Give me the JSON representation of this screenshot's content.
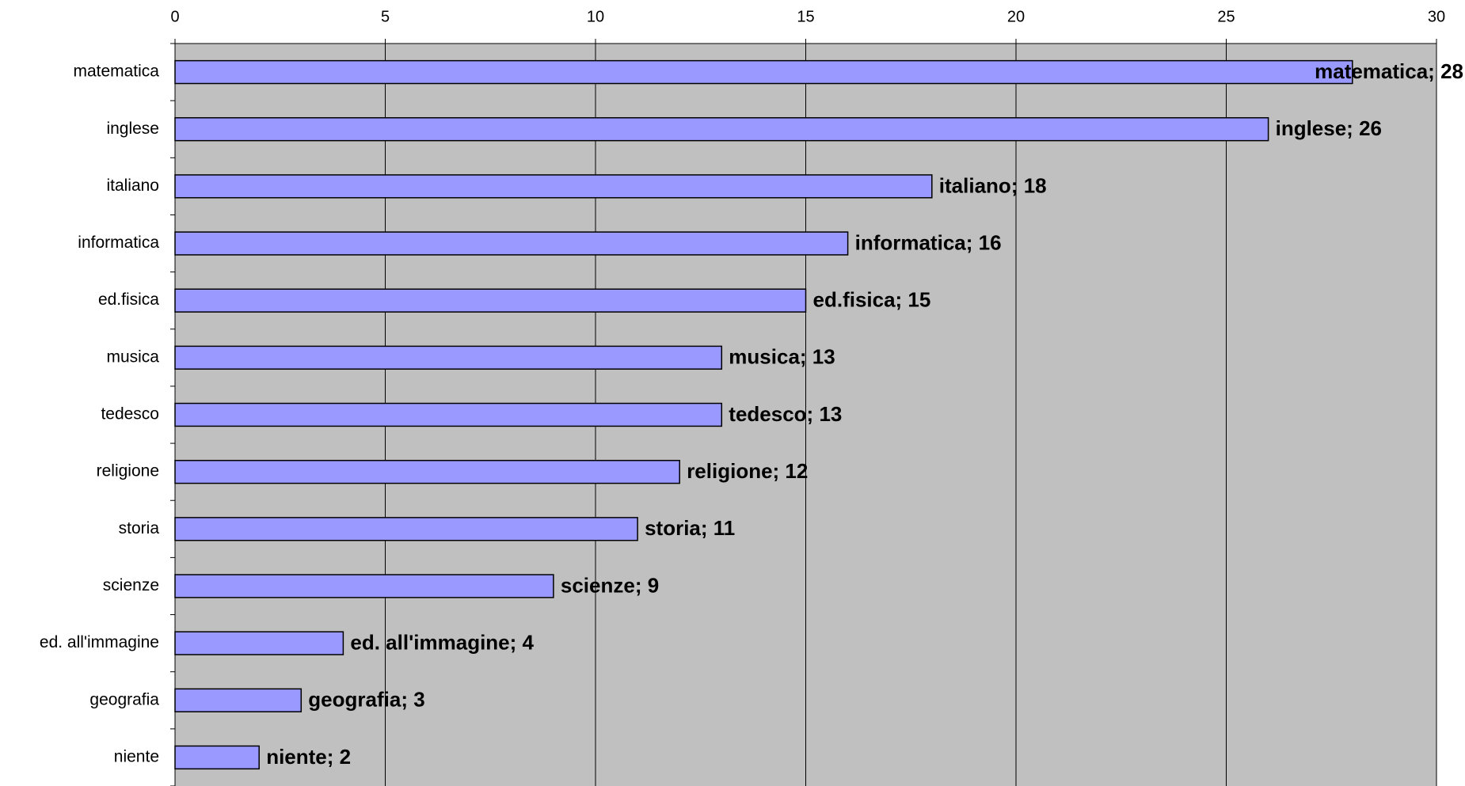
{
  "chart_data": {
    "type": "bar",
    "orientation": "horizontal",
    "categories": [
      "matematica",
      "inglese",
      "italiano",
      "informatica",
      "ed.fisica",
      "musica",
      "tedesco",
      "religione",
      "storia",
      "scienze",
      "ed. all'immagine",
      "geografia",
      "niente"
    ],
    "values": [
      28,
      26,
      18,
      16,
      15,
      13,
      13,
      12,
      11,
      9,
      4,
      3,
      2
    ],
    "value_labels": [
      "matematica; 28",
      "inglese; 26",
      "italiano; 18",
      "informatica; 16",
      "ed.fisica; 15",
      "musica; 13",
      "tedesco; 13",
      "religione; 12",
      "storia; 11",
      "scienze; 9",
      "ed. all'immagine; 4",
      "geografia; 3",
      "niente; 2"
    ],
    "color": "#9999ff",
    "xlim": [
      0,
      30
    ],
    "xticks": [
      0,
      5,
      10,
      15,
      20,
      25,
      30
    ],
    "grid": true
  }
}
